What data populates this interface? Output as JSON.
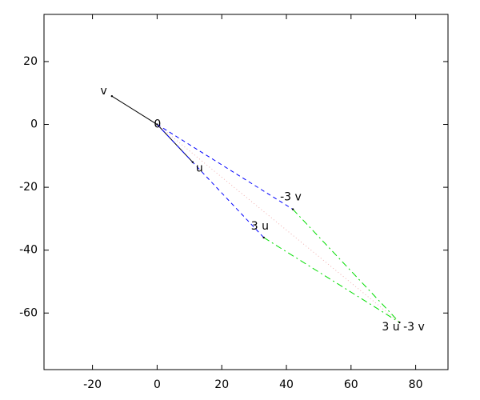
{
  "chart_data": {
    "type": "vector",
    "points": [
      {
        "label": "0",
        "x": 0,
        "y": 0
      },
      {
        "label": "v",
        "x": -14,
        "y": 9
      },
      {
        "label": "u",
        "x": 11,
        "y": -12
      },
      {
        "label": "-3 v",
        "x": 42,
        "y": -27
      },
      {
        "label": "3 u",
        "x": 33,
        "y": -36
      },
      {
        "label": "3 u -3 v",
        "x": 75,
        "y": -63
      }
    ],
    "segments": [
      {
        "from": 0,
        "to": 1,
        "color": "#000000",
        "dash": "solid"
      },
      {
        "from": 0,
        "to": 2,
        "color": "#000000",
        "dash": "solid"
      },
      {
        "from": 0,
        "to": 3,
        "color": "#0000ff",
        "dash": "dashed"
      },
      {
        "from": 0,
        "to": 4,
        "color": "#0000ff",
        "dash": "dashed"
      },
      {
        "from": 3,
        "to": 5,
        "color": "#00dd00",
        "dash": "dashdot"
      },
      {
        "from": 4,
        "to": 5,
        "color": "#00dd00",
        "dash": "dashdot"
      },
      {
        "from": 0,
        "to": 5,
        "color": "#f0b0b0",
        "dash": "dotted"
      }
    ],
    "xlim": [
      -35,
      90
    ],
    "ylim": [
      -78,
      35
    ],
    "xticks": [
      -20,
      0,
      20,
      40,
      60,
      80
    ],
    "yticks": [
      20,
      0,
      -20,
      -40,
      -60
    ]
  }
}
